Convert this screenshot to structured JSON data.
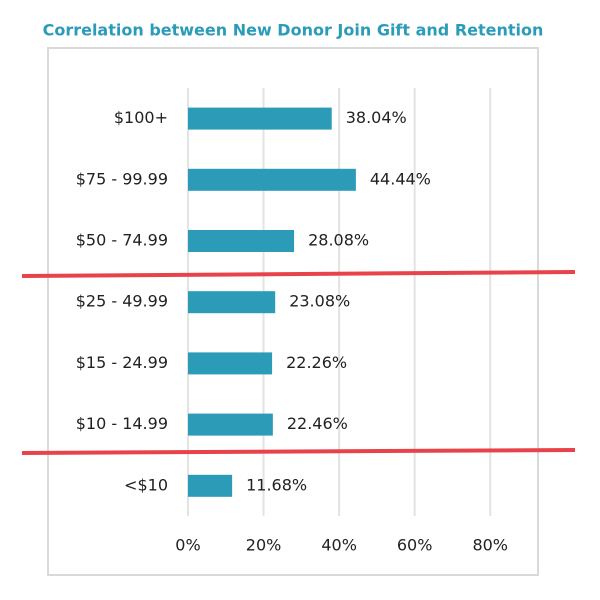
{
  "chart_data": {
    "type": "hbar",
    "title": "Correlation between New Donor Join Gift and Retention",
    "categories": [
      "$100+",
      "$75 - 99.99",
      "$50 - 74.99",
      "$25 - 49.99",
      "$15 - 24.99",
      "$10 - 14.99",
      "<$10"
    ],
    "values": [
      38.04,
      44.44,
      28.08,
      23.08,
      22.26,
      22.46,
      11.68
    ],
    "value_labels": [
      "38.04%",
      "44.44%",
      "28.08%",
      "23.08%",
      "22.26%",
      "22.46%",
      "11.68%"
    ],
    "color": "#2b9bb8",
    "xlim": [
      0,
      90
    ],
    "xticks": [
      {
        "value": 0,
        "label": "0%"
      },
      {
        "value": 20,
        "label": "20%"
      },
      {
        "value": 40,
        "label": "40%"
      },
      {
        "value": 60,
        "label": "60%"
      },
      {
        "value": 80,
        "label": "80%"
      }
    ],
    "grid": true
  }
}
